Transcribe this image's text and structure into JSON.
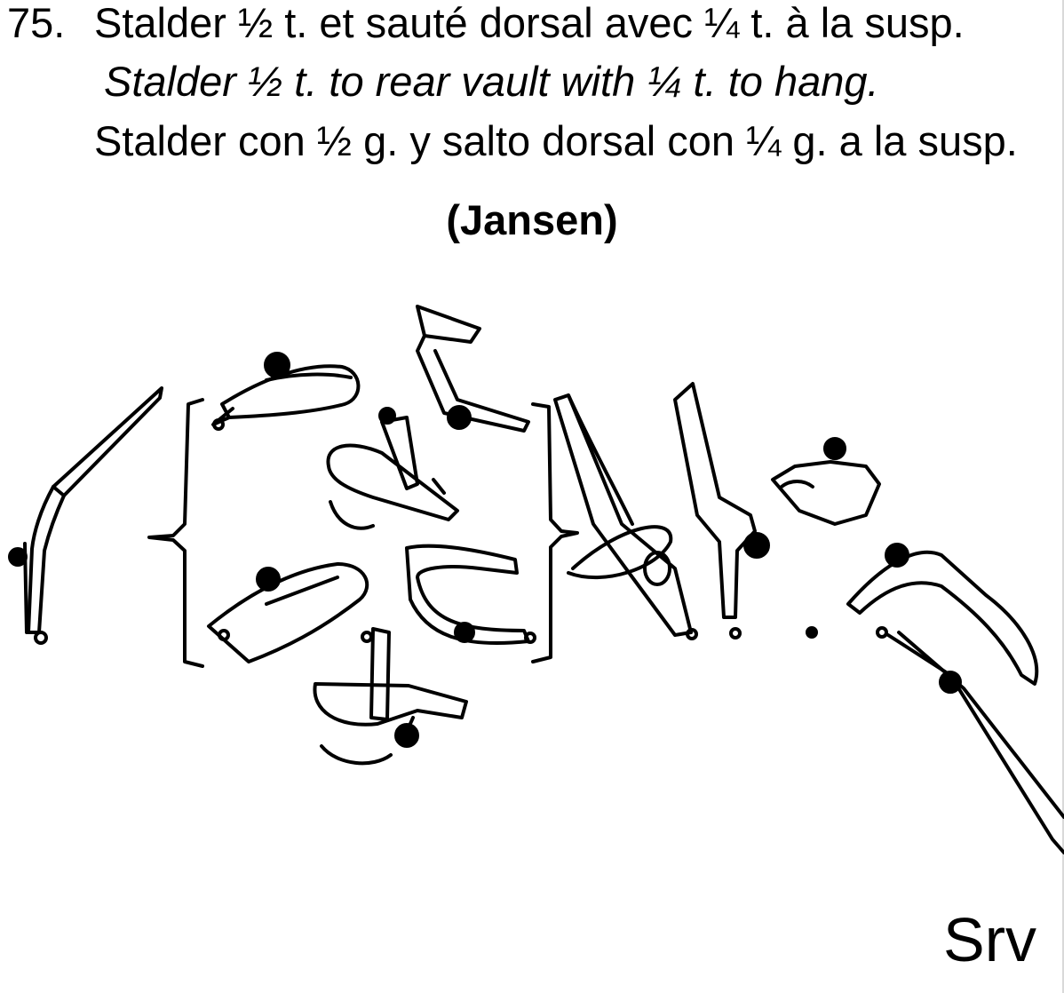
{
  "header": {
    "number": "75.",
    "fr": "Stalder ½ t. et sauté dorsal avec ¼ t. à la susp.",
    "en": "Stalder ½ t. to rear vault with ¼ t. to hang.",
    "es": "Stalder con ½ g. y salto dorsal con ¼ g. a la susp.",
    "name": "(Jansen)"
  },
  "signature_text": "Srv",
  "colors": {
    "ink": "#000000",
    "paper": "#ffffff"
  },
  "icons": [
    "handstand-figure",
    "bracket-left",
    "bracket-right",
    "turn-arrow",
    "gymnast-figure",
    "signature-mark"
  ]
}
